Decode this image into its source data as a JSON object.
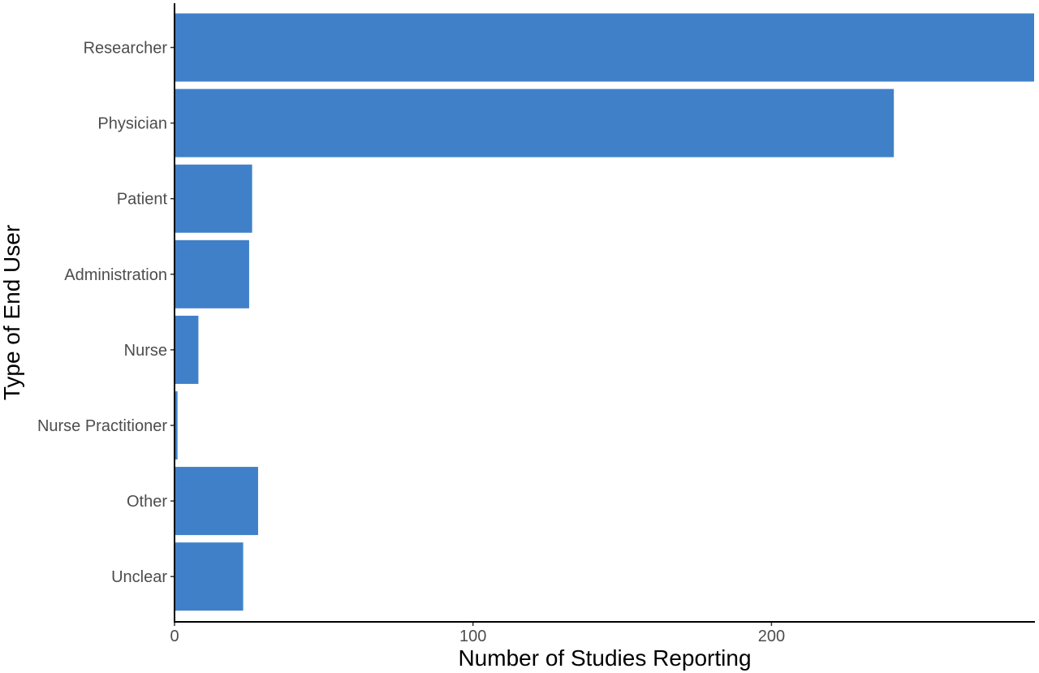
{
  "chart_data": {
    "type": "bar",
    "orientation": "horizontal",
    "categories": [
      "Researcher",
      "Physician",
      "Patient",
      "Administration",
      "Nurse",
      "Nurse Practitioner",
      "Other",
      "Unclear"
    ],
    "values": [
      288,
      241,
      26,
      25,
      8,
      1,
      28,
      23
    ],
    "xlabel": "Number of Studies Reporting",
    "ylabel": "Type of End User",
    "xlim": [
      0,
      288
    ],
    "xticks": [
      "0",
      "100",
      "200"
    ],
    "grid": false,
    "bar_color": "#4080c8"
  }
}
